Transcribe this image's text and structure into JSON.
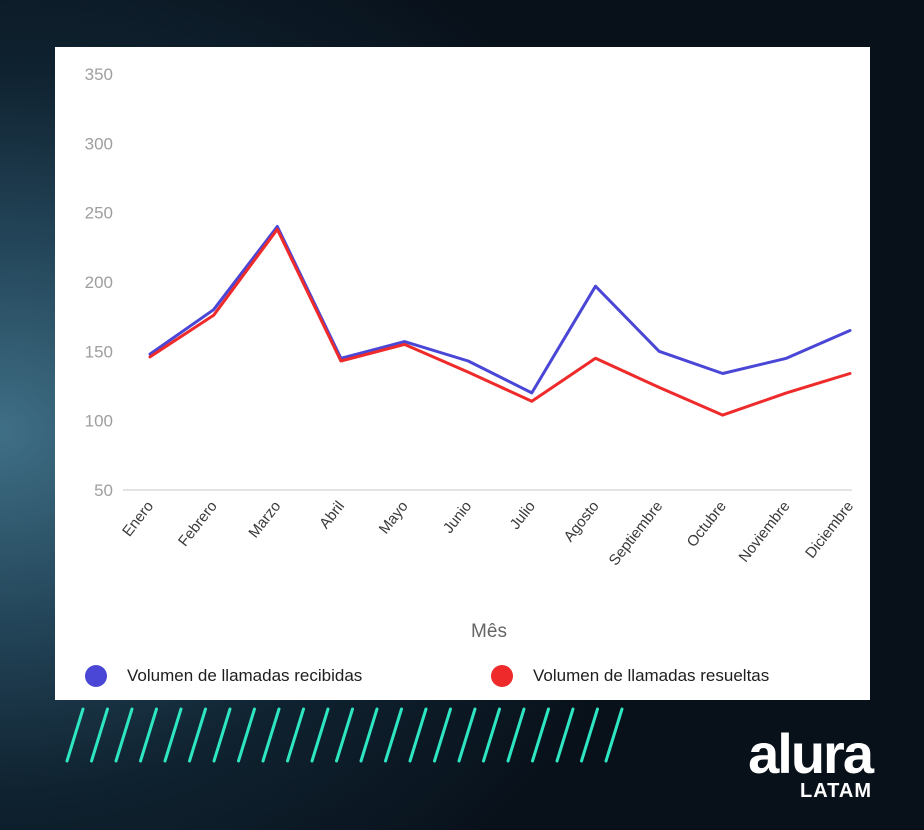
{
  "chart_data": {
    "type": "line",
    "categories": [
      "Enero",
      "Febrero",
      "Marzo",
      "Abril",
      "Mayo",
      "Junio",
      "Julio",
      "Agosto",
      "Septiembre",
      "Octubre",
      "Noviembre",
      "Diciembre"
    ],
    "series": [
      {
        "name": "Volumen de llamadas recibidas",
        "color": "#4a46d6",
        "values": [
          148,
          180,
          240,
          145,
          157,
          143,
          120,
          197,
          150,
          134,
          145,
          165
        ]
      },
      {
        "name": "Volumen de llamadas resueltas",
        "color": "#ee2a2a",
        "values": [
          146,
          176,
          238,
          143,
          155,
          135,
          114,
          145,
          124,
          104,
          120,
          134
        ]
      }
    ],
    "title": "",
    "xlabel": "Mês",
    "ylabel": "",
    "ylim": [
      50,
      350
    ],
    "yticks": [
      50,
      100,
      150,
      200,
      250,
      300,
      350
    ],
    "grid": false,
    "legend": "bottom"
  },
  "brand": {
    "name": "alura",
    "sub": "LATAM"
  }
}
